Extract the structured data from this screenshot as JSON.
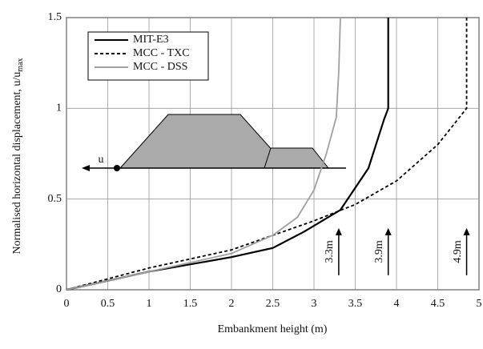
{
  "chart_data": {
    "type": "line",
    "x_label": "Embankment height (m)",
    "y_label": "Normalised horizontal displacement, u/u",
    "y_label_sub": "max",
    "xlim": [
      0,
      5
    ],
    "xticks": [
      0,
      0.5,
      1,
      1.5,
      2,
      2.5,
      3,
      3.5,
      4,
      4.5,
      5
    ],
    "ylim": [
      0,
      1.5
    ],
    "yticks": [
      0,
      0.5,
      1,
      1.5
    ],
    "grid": true,
    "legend": "upper left",
    "diagram_label": "u",
    "series": [
      {
        "name": "MIT-E3",
        "color": "#000000",
        "dash": "solid",
        "x": [
          0,
          1,
          2,
          2.5,
          2.88,
          3.32,
          3.66,
          3.85,
          3.9,
          3.9
        ],
        "values": [
          0,
          0.1,
          0.18,
          0.23,
          0.32,
          0.44,
          0.67,
          0.94,
          1.0,
          1.5
        ]
      },
      {
        "name": "MCC - TXC",
        "color": "#000000",
        "dash": "dashed",
        "x": [
          0,
          1,
          2,
          3,
          3.5,
          4,
          4.5,
          4.85,
          4.85
        ],
        "values": [
          0,
          0.12,
          0.22,
          0.38,
          0.47,
          0.6,
          0.8,
          1.0,
          1.5
        ]
      },
      {
        "name": "MCC - DSS",
        "color": "#a0a0a0",
        "dash": "solid",
        "x": [
          0,
          1,
          2,
          2.5,
          2.8,
          3.0,
          3.15,
          3.27,
          3.3,
          3.32
        ],
        "values": [
          0,
          0.1,
          0.2,
          0.3,
          0.4,
          0.55,
          0.75,
          0.95,
          1.2,
          1.5
        ]
      }
    ],
    "annotations": [
      {
        "text": "3.3m",
        "x": 3.3
      },
      {
        "text": "3.9m",
        "x": 3.9
      },
      {
        "text": "4.9m",
        "x": 4.85
      }
    ]
  }
}
